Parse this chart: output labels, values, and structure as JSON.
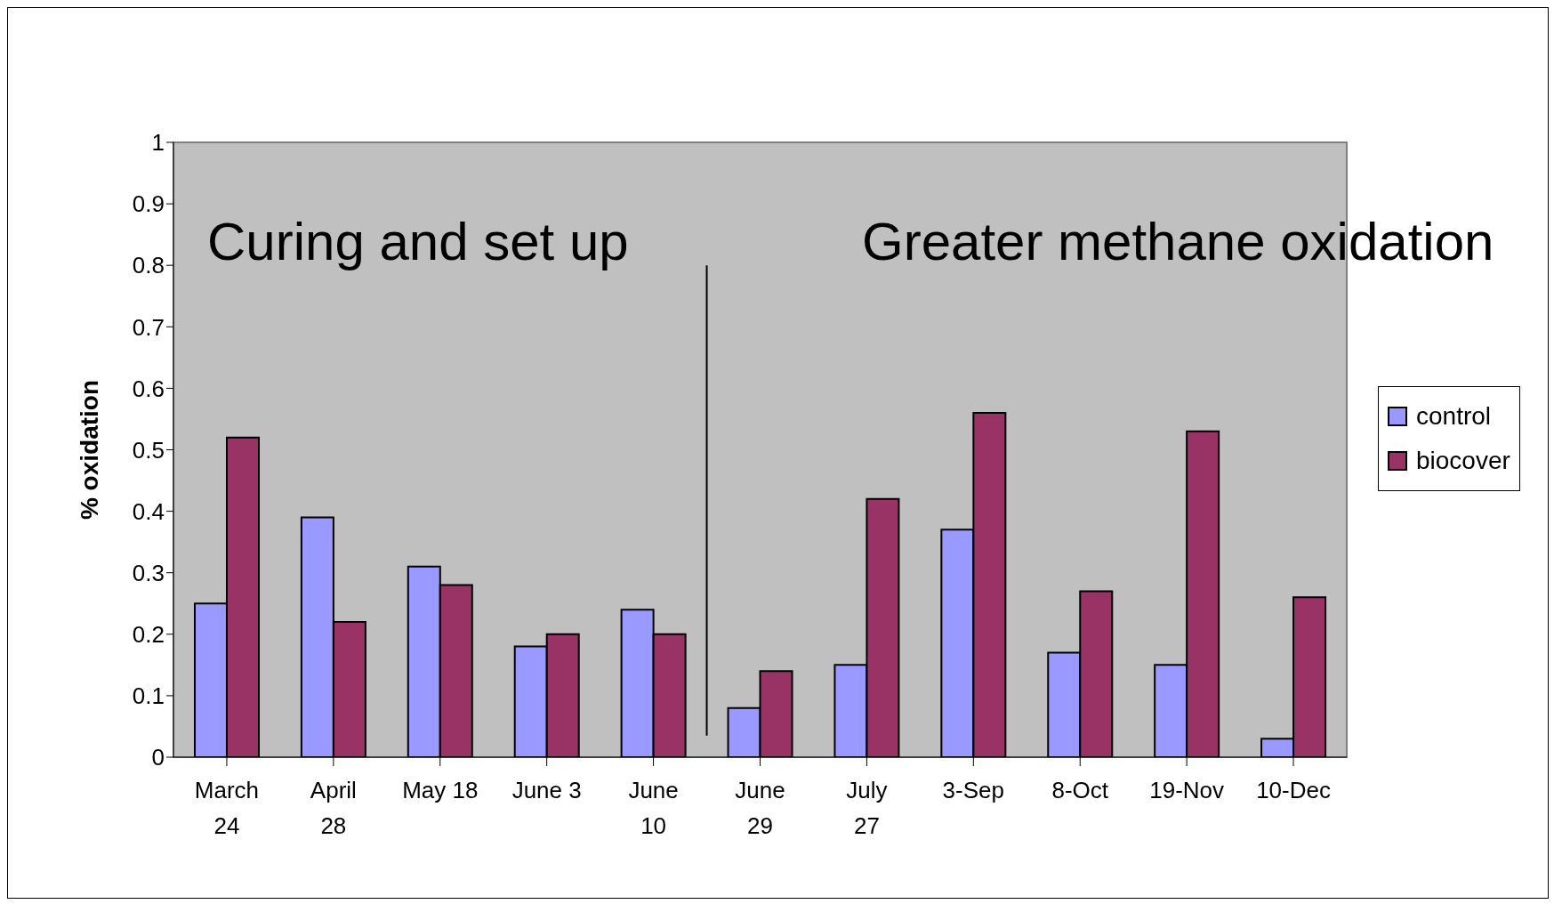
{
  "chart_data": {
    "type": "bar",
    "ylabel": "% oxidation",
    "categories": [
      "March 24",
      "April 28",
      "May 18",
      "June 3",
      "June 10",
      "June 29",
      "July 27",
      "3-Sep",
      "8-Oct",
      "19-Nov",
      "10-Dec"
    ],
    "series": [
      {
        "name": "control",
        "color": "#9999ff",
        "values": [
          0.25,
          0.39,
          0.31,
          0.18,
          0.24,
          0.08,
          0.15,
          0.37,
          0.17,
          0.15,
          0.03
        ]
      },
      {
        "name": "biocover",
        "color": "#993366",
        "values": [
          0.52,
          0.22,
          0.28,
          0.2,
          0.2,
          0.14,
          0.42,
          0.56,
          0.27,
          0.53,
          0.26
        ]
      }
    ],
    "ylim": [
      0,
      1
    ],
    "yticks": [
      0,
      0.1,
      0.2,
      0.3,
      0.4,
      0.5,
      0.6,
      0.7,
      0.8,
      0.9,
      1
    ],
    "legend": "right",
    "annotations": [
      "Curing and set up",
      "Greater methane oxidation"
    ]
  }
}
